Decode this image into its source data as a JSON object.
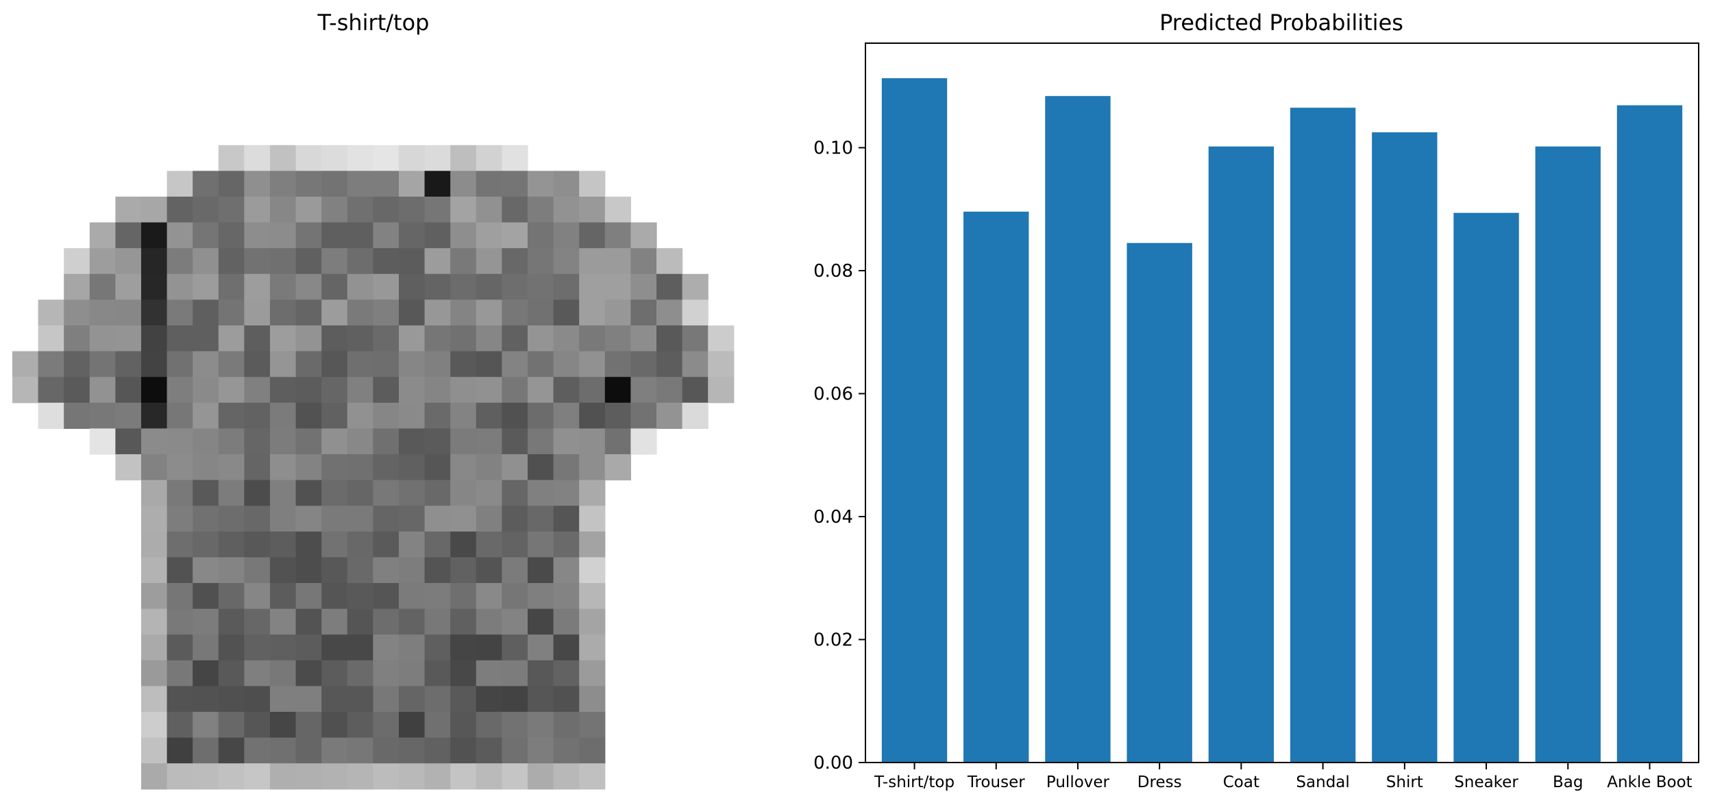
{
  "image_panel": {
    "title": "T-shirt/top",
    "cmap": "gray_r",
    "shown_item": "low-resolution grayscale image of a T-shirt/top"
  },
  "chart_data": {
    "type": "bar",
    "title": "Predicted Probabilities",
    "xlabel": "",
    "ylabel": "",
    "categories": [
      "T-shirt/top",
      "Trouser",
      "Pullover",
      "Dress",
      "Coat",
      "Sandal",
      "Shirt",
      "Sneaker",
      "Bag",
      "Ankle Boot"
    ],
    "values": [
      0.1113,
      0.0896,
      0.1084,
      0.0845,
      0.1002,
      0.1065,
      0.1025,
      0.0894,
      0.1002,
      0.1069
    ],
    "ylim": [
      0,
      0.117
    ],
    "yticks": [
      "0.00",
      "0.02",
      "0.04",
      "0.06",
      "0.08",
      "0.10"
    ],
    "ytick_values": [
      0,
      0.02,
      0.04,
      0.06,
      0.08,
      0.1
    ],
    "grid": false,
    "bar_color": "#1f77b4"
  }
}
